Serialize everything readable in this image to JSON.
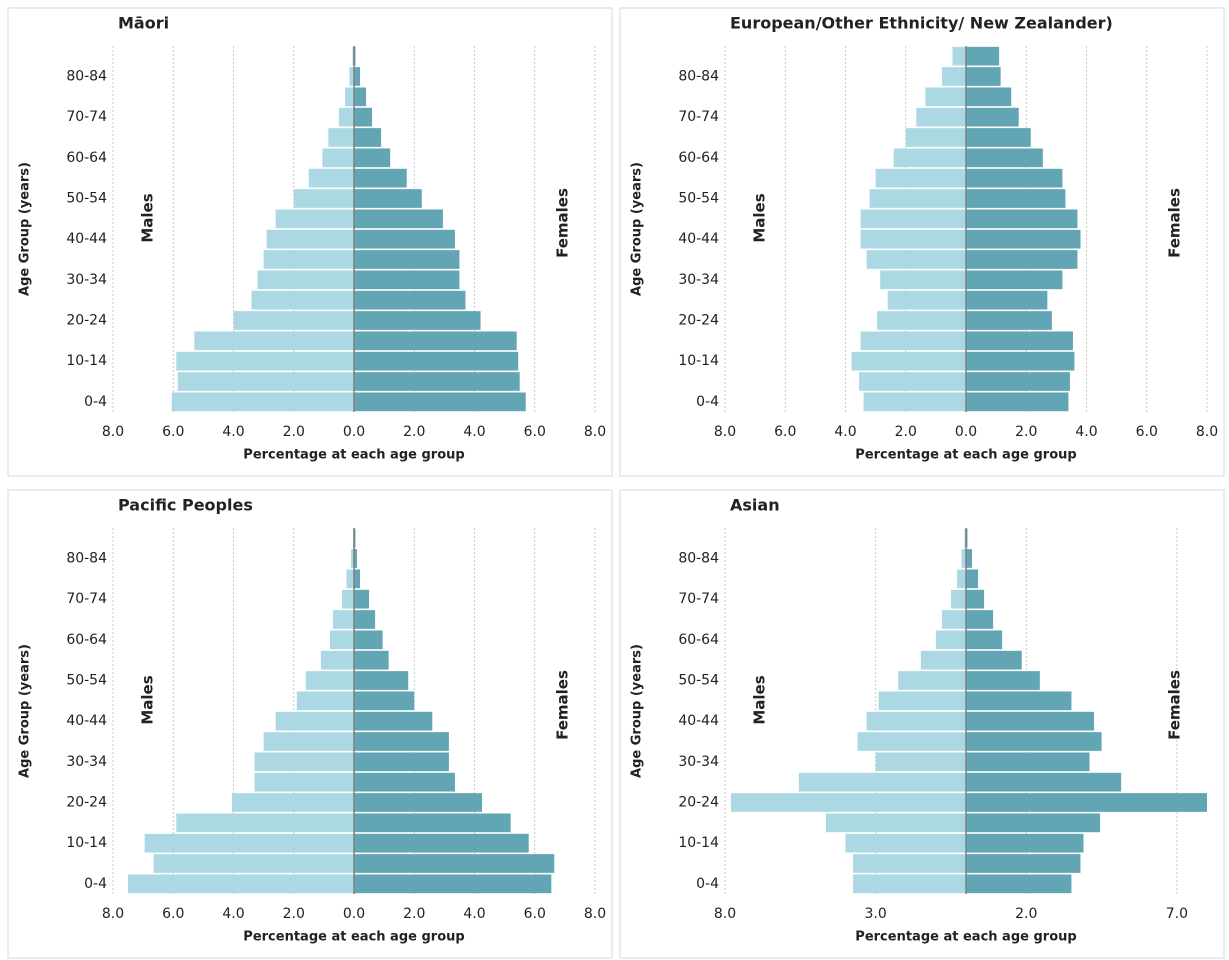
{
  "chart_data": [
    {
      "type": "pyramid",
      "title": "Māori",
      "ylabel": "Age Group (years)",
      "xlabel": "Percentage at each age group",
      "categories": [
        "0-4",
        null,
        "10-14",
        null,
        "20-24",
        null,
        "30-34",
        null,
        "40-44",
        null,
        "50-54",
        null,
        "60-64",
        null,
        "70-74",
        null,
        "80-84",
        null
      ],
      "series": [
        {
          "name": "Males",
          "color": "#acd8e4",
          "values": [
            -6.05,
            -5.85,
            -5.9,
            -5.3,
            -4.0,
            -3.4,
            -3.2,
            -3.0,
            -2.9,
            -2.6,
            -2.0,
            -1.5,
            -1.05,
            -0.85,
            -0.5,
            -0.3,
            -0.15,
            -0.05
          ]
        },
        {
          "name": "Females",
          "color": "#62a5b4",
          "values": [
            5.7,
            5.5,
            5.45,
            5.4,
            4.2,
            3.7,
            3.5,
            3.5,
            3.35,
            2.95,
            2.25,
            1.75,
            1.2,
            0.9,
            0.6,
            0.4,
            0.2,
            0.05
          ]
        }
      ],
      "xlim": [
        -8,
        8
      ],
      "xticks": [
        {
          "value": -8,
          "label": "8.0"
        },
        {
          "value": -6,
          "label": "6.0"
        },
        {
          "value": -4,
          "label": "4.0"
        },
        {
          "value": -2,
          "label": "2.0"
        },
        {
          "value": 0,
          "label": "0.0"
        },
        {
          "value": 2,
          "label": "2.0"
        },
        {
          "value": 4,
          "label": "4.0"
        },
        {
          "value": 6,
          "label": "6.0"
        },
        {
          "value": 8,
          "label": "8.0"
        }
      ],
      "grid": true
    },
    {
      "type": "pyramid",
      "title": "European/Other Ethnicity/ New Zealander)",
      "ylabel": "Age Group (years)",
      "xlabel": "Percentage at each age group",
      "categories": [
        "0-4",
        null,
        "10-14",
        null,
        "20-24",
        null,
        "30-34",
        null,
        "40-44",
        null,
        "50-54",
        null,
        "60-64",
        null,
        "70-74",
        null,
        "80-84",
        null
      ],
      "series": [
        {
          "name": "Males",
          "color": "#acd8e4",
          "values": [
            -3.4,
            -3.55,
            -3.8,
            -3.5,
            -2.95,
            -2.6,
            -2.85,
            -3.3,
            -3.5,
            -3.5,
            -3.2,
            -3.0,
            -2.4,
            -2.0,
            -1.65,
            -1.35,
            -0.8,
            -0.45
          ]
        },
        {
          "name": "Females",
          "color": "#62a5b4",
          "values": [
            3.4,
            3.45,
            3.6,
            3.55,
            2.85,
            2.7,
            3.2,
            3.7,
            3.8,
            3.7,
            3.3,
            3.2,
            2.55,
            2.15,
            1.75,
            1.5,
            1.15,
            1.1
          ]
        }
      ],
      "xlim": [
        -8,
        8
      ],
      "xticks": [
        {
          "value": -8,
          "label": "8.0"
        },
        {
          "value": -6,
          "label": "6.0"
        },
        {
          "value": -4,
          "label": "4.0"
        },
        {
          "value": -2,
          "label": "2.0"
        },
        {
          "value": 0,
          "label": "0.0"
        },
        {
          "value": 2,
          "label": "2.0"
        },
        {
          "value": 4,
          "label": "4.0"
        },
        {
          "value": 6,
          "label": "6.0"
        },
        {
          "value": 8,
          "label": "8.0"
        }
      ],
      "grid": true
    },
    {
      "type": "pyramid",
      "title": "Pacific Peoples",
      "ylabel": "Age Group (years)",
      "xlabel": "Percentage at each age group",
      "categories": [
        "0-4",
        null,
        "10-14",
        null,
        "20-24",
        null,
        "30-34",
        null,
        "40-44",
        null,
        "50-54",
        null,
        "60-64",
        null,
        "70-74",
        null,
        "80-84",
        null
      ],
      "series": [
        {
          "name": "Males",
          "color": "#acd8e4",
          "values": [
            -7.5,
            -6.65,
            -6.95,
            -5.9,
            -4.05,
            -3.3,
            -3.3,
            -3.0,
            -2.6,
            -1.9,
            -1.6,
            -1.1,
            -0.8,
            -0.7,
            -0.4,
            -0.25,
            -0.1,
            -0.03
          ]
        },
        {
          "name": "Females",
          "color": "#62a5b4",
          "values": [
            6.55,
            6.65,
            5.8,
            5.2,
            4.25,
            3.35,
            3.15,
            3.15,
            2.6,
            2.0,
            1.8,
            1.15,
            0.95,
            0.7,
            0.5,
            0.2,
            0.1,
            0.05
          ]
        }
      ],
      "xlim": [
        -8,
        8
      ],
      "xticks": [
        {
          "value": -8,
          "label": "8.0"
        },
        {
          "value": -6,
          "label": "6.0"
        },
        {
          "value": -4,
          "label": "4.0"
        },
        {
          "value": -2,
          "label": "2.0"
        },
        {
          "value": 0,
          "label": "0.0"
        },
        {
          "value": 2,
          "label": "2.0"
        },
        {
          "value": 4,
          "label": "4.0"
        },
        {
          "value": 6,
          "label": "6.0"
        },
        {
          "value": 8,
          "label": "8.0"
        }
      ],
      "grid": true
    },
    {
      "type": "pyramid",
      "title": "Asian",
      "ylabel": "Age Group (years)",
      "xlabel": "Percentage at each age group",
      "categories": [
        "0-4",
        null,
        "10-14",
        null,
        "20-24",
        null,
        "30-34",
        null,
        "40-44",
        null,
        "50-54",
        null,
        "60-64",
        null,
        "70-74",
        null,
        "80-84",
        null
      ],
      "series": [
        {
          "name": "Males",
          "color": "#acd8e4",
          "values": [
            -3.75,
            -3.75,
            -4.0,
            -4.65,
            -7.8,
            -5.55,
            -3.0,
            -3.6,
            -3.3,
            -2.9,
            -2.25,
            -1.5,
            -1.0,
            -0.8,
            -0.5,
            -0.3,
            -0.15,
            -0.05
          ]
        },
        {
          "name": "Females",
          "color": "#62a5b4",
          "values": [
            3.5,
            3.8,
            3.9,
            4.45,
            8.0,
            5.15,
            4.1,
            4.5,
            4.25,
            3.5,
            2.45,
            1.85,
            1.2,
            0.9,
            0.6,
            0.4,
            0.2,
            0.05
          ]
        }
      ],
      "xlim": [
        -8,
        8
      ],
      "xticks": [
        {
          "value": -8,
          "label": "8.0"
        },
        {
          "value": -3,
          "label": "3.0"
        },
        {
          "value": 2,
          "label": "2.0"
        },
        {
          "value": 7,
          "label": "7.0"
        }
      ],
      "grid": true
    }
  ]
}
